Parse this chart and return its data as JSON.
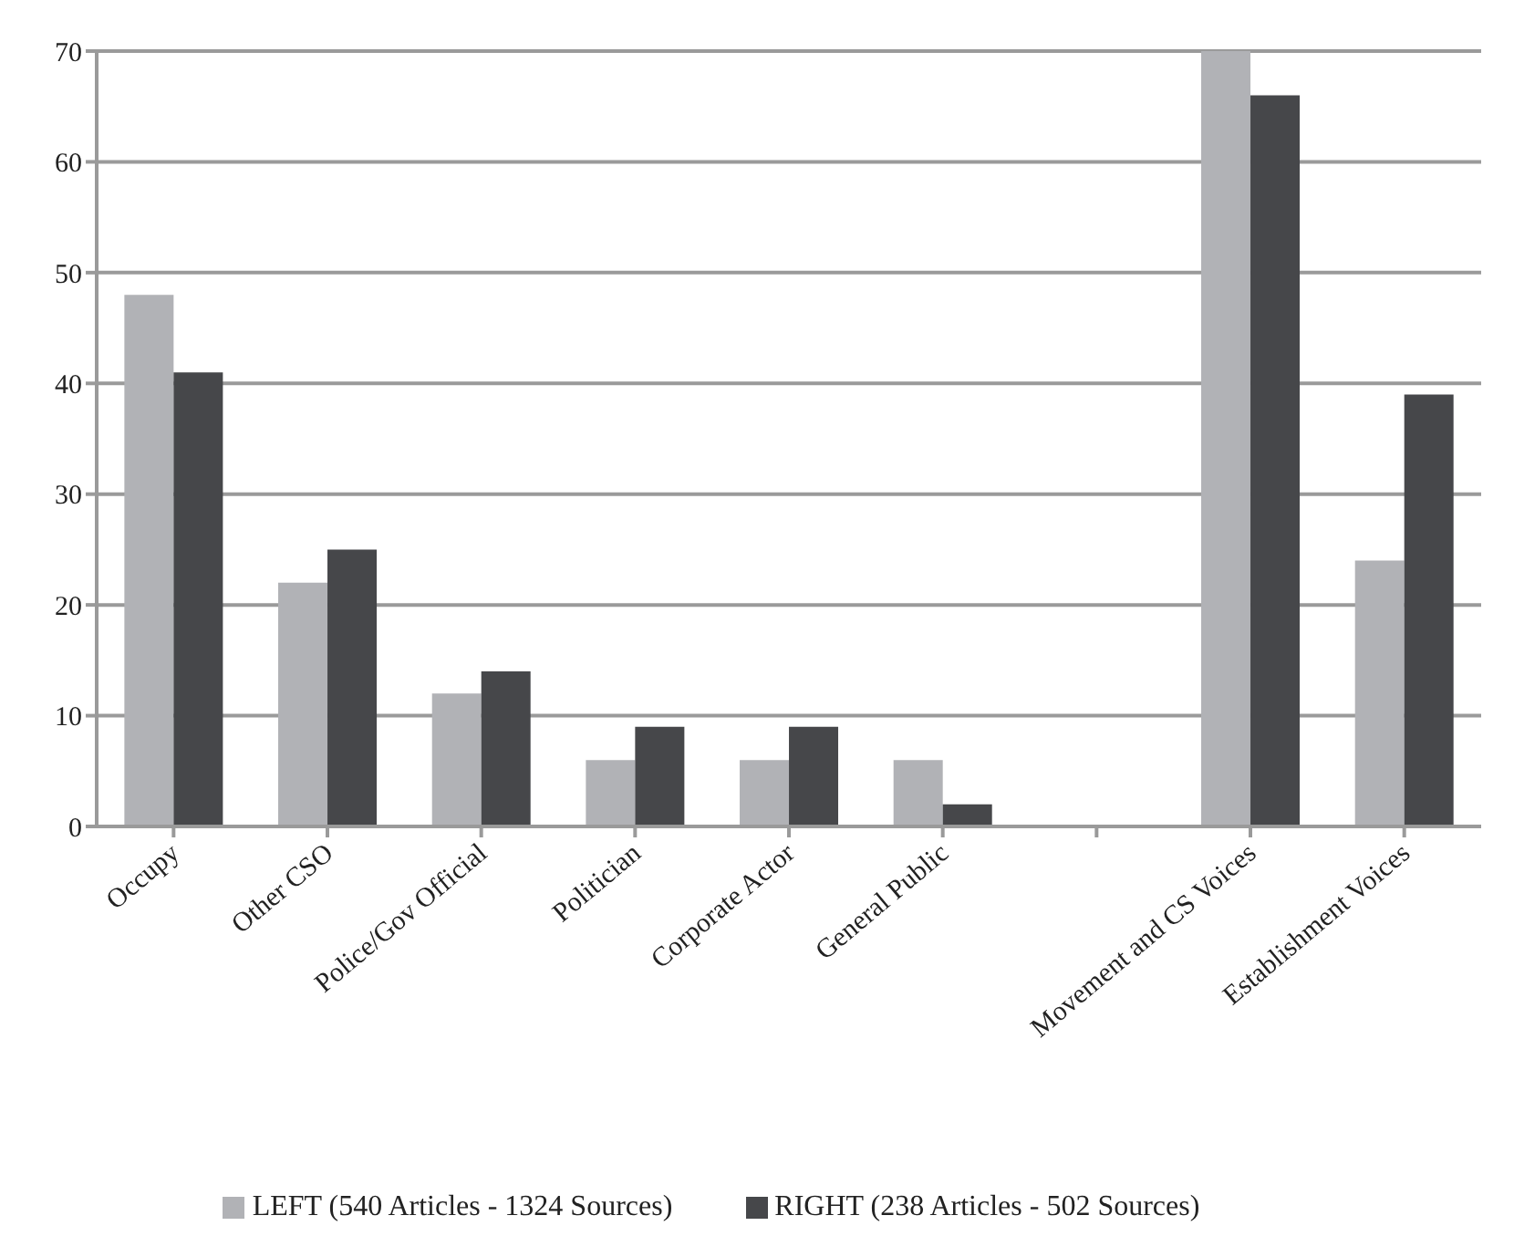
{
  "chart_data": {
    "type": "bar",
    "categories": [
      "Occupy",
      "Other CSO",
      "Police/Gov Official",
      "Politician",
      "Corporate Actor",
      "General Public",
      null,
      "Movement and CS Voices",
      "Establishment Voices"
    ],
    "series": [
      {
        "name": "LEFT (540 Articles - 1324 Sources)",
        "color": "#b1b2b6",
        "values": [
          48,
          22,
          12,
          6,
          6,
          6,
          null,
          70,
          24
        ]
      },
      {
        "name": "RIGHT (238 Articles - 502 Sources)",
        "color": "#46474a",
        "values": [
          41,
          25,
          14,
          9,
          9,
          2,
          null,
          66,
          39
        ]
      }
    ],
    "ylim": [
      0,
      70
    ],
    "yticks": [
      0,
      10,
      20,
      30,
      40,
      50,
      60,
      70
    ],
    "grid": "y",
    "legend": "bottom"
  }
}
